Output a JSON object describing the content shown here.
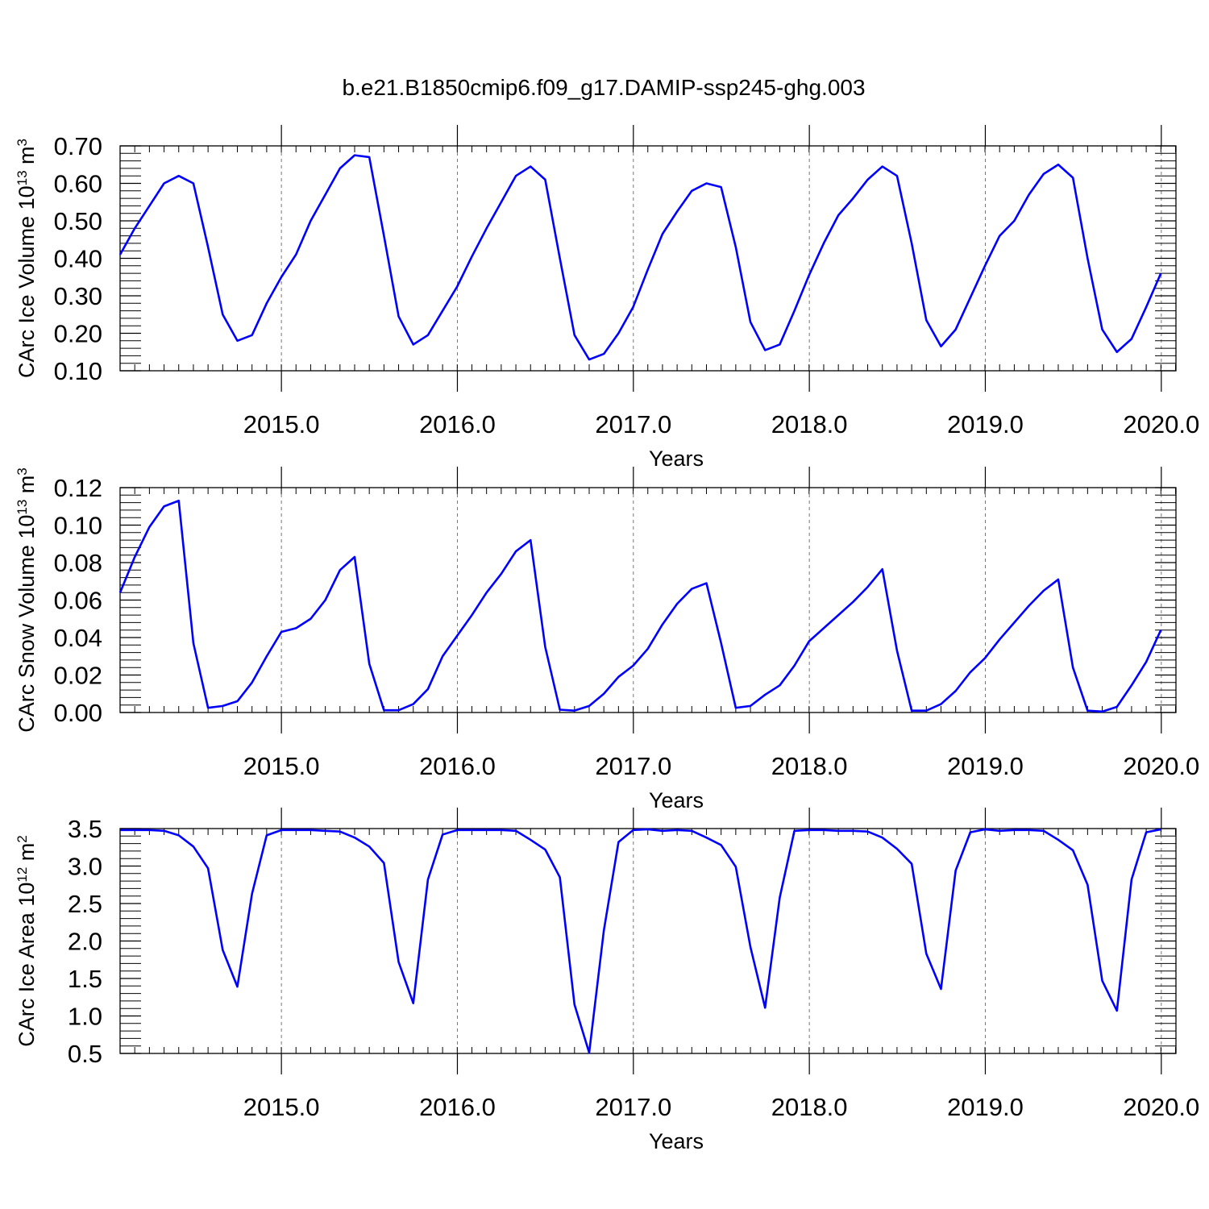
{
  "title": "b.e21.B1850cmip6.f09_g17.DAMIP-ssp245-ghg.003",
  "chart_data": [
    {
      "type": "line",
      "ylabel_main": "CArc Ice Volume 10",
      "ylabel_exp": "13",
      "ylabel_unit": " m",
      "ylabel_unit_exp": "3",
      "xlabel": "Years",
      "xlim": [
        2014.0833,
        2020.0833
      ],
      "ylim": [
        0.1,
        0.7
      ],
      "yticks": [
        0.1,
        0.2,
        0.3,
        0.4,
        0.5,
        0.6,
        0.7
      ],
      "ytick_labels": [
        "0.10",
        "0.20",
        "0.30",
        "0.40",
        "0.50",
        "0.60",
        "0.70"
      ],
      "xticks": [
        2015,
        2016,
        2017,
        2018,
        2019,
        2020
      ],
      "xtick_labels": [
        "2015.0",
        "2016.0",
        "2017.0",
        "2018.0",
        "2019.0",
        "2020.0"
      ],
      "grid": "dashed vertical at years",
      "color": "#0000ff",
      "x_start": 2014.0833,
      "x_step": 0.0833,
      "values": [
        0.41,
        0.48,
        0.54,
        0.6,
        0.62,
        0.6,
        0.43,
        0.25,
        0.18,
        0.195,
        0.28,
        0.35,
        0.41,
        0.5,
        0.57,
        0.64,
        0.675,
        0.67,
        0.46,
        0.245,
        0.17,
        0.195,
        0.26,
        0.325,
        0.405,
        0.48,
        0.55,
        0.62,
        0.645,
        0.61,
        0.4,
        0.195,
        0.13,
        0.145,
        0.2,
        0.27,
        0.37,
        0.465,
        0.525,
        0.58,
        0.6,
        0.59,
        0.43,
        0.23,
        0.155,
        0.17,
        0.26,
        0.355,
        0.44,
        0.515,
        0.56,
        0.61,
        0.645,
        0.62,
        0.44,
        0.235,
        0.165,
        0.21,
        0.295,
        0.38,
        0.46,
        0.5,
        0.57,
        0.625,
        0.65,
        0.615,
        0.4,
        0.21,
        0.15,
        0.185,
        0.27,
        0.36
      ]
    },
    {
      "type": "line",
      "ylabel_main": "CArc Snow Volume 10",
      "ylabel_exp": "13",
      "ylabel_unit": " m",
      "ylabel_unit_exp": "3",
      "xlabel": "Years",
      "xlim": [
        2014.0833,
        2020.0833
      ],
      "ylim": [
        0.0,
        0.12
      ],
      "yticks": [
        0.0,
        0.02,
        0.04,
        0.06,
        0.08,
        0.1,
        0.12
      ],
      "ytick_labels": [
        "0.00",
        "0.02",
        "0.04",
        "0.06",
        "0.08",
        "0.10",
        "0.12"
      ],
      "xticks": [
        2015,
        2016,
        2017,
        2018,
        2019,
        2020
      ],
      "xtick_labels": [
        "2015.0",
        "2016.0",
        "2017.0",
        "2018.0",
        "2019.0",
        "2020.0"
      ],
      "grid": "dashed vertical at years",
      "color": "#0000ff",
      "x_start": 2014.0833,
      "x_step": 0.0833,
      "values": [
        0.064,
        0.083,
        0.099,
        0.11,
        0.113,
        0.037,
        0.0025,
        0.0035,
        0.006,
        0.016,
        0.03,
        0.043,
        0.045,
        0.05,
        0.06,
        0.076,
        0.083,
        0.026,
        0.0012,
        0.0012,
        0.0045,
        0.0125,
        0.03,
        0.041,
        0.052,
        0.064,
        0.074,
        0.086,
        0.092,
        0.035,
        0.0015,
        0.001,
        0.0035,
        0.01,
        0.019,
        0.025,
        0.034,
        0.047,
        0.058,
        0.066,
        0.069,
        0.037,
        0.0025,
        0.0035,
        0.0095,
        0.0145,
        0.025,
        0.038,
        0.045,
        0.052,
        0.059,
        0.067,
        0.0765,
        0.033,
        0.001,
        0.001,
        0.0045,
        0.0115,
        0.0215,
        0.029,
        0.039,
        0.048,
        0.057,
        0.065,
        0.071,
        0.024,
        0.001,
        0.0005,
        0.003,
        0.0145,
        0.027,
        0.044
      ]
    },
    {
      "type": "line",
      "ylabel_main": "CArc Ice Area 10",
      "ylabel_exp": "12",
      "ylabel_unit": " m",
      "ylabel_unit_exp": "2",
      "xlabel": "Years",
      "xlim": [
        2014.0833,
        2020.0833
      ],
      "ylim": [
        0.5,
        3.5
      ],
      "yticks": [
        0.5,
        1.0,
        1.5,
        2.0,
        2.5,
        3.0,
        3.5
      ],
      "ytick_labels": [
        "0.5",
        "1.0",
        "1.5",
        "2.0",
        "2.5",
        "3.0",
        "3.5"
      ],
      "xticks": [
        2015,
        2016,
        2017,
        2018,
        2019,
        2020
      ],
      "xtick_labels": [
        "2015.0",
        "2016.0",
        "2017.0",
        "2018.0",
        "2019.0",
        "2020.0"
      ],
      "grid": "dashed vertical at years",
      "color": "#0000ff",
      "x_start": 2014.0833,
      "x_step": 0.0833,
      "values": [
        3.48,
        3.48,
        3.48,
        3.47,
        3.41,
        3.26,
        2.97,
        1.88,
        1.39,
        2.63,
        3.41,
        3.48,
        3.48,
        3.48,
        3.47,
        3.46,
        3.38,
        3.26,
        3.04,
        1.72,
        1.17,
        2.82,
        3.42,
        3.48,
        3.48,
        3.48,
        3.48,
        3.47,
        3.35,
        3.22,
        2.85,
        1.15,
        0.51,
        2.14,
        3.32,
        3.48,
        3.49,
        3.47,
        3.48,
        3.47,
        3.38,
        3.28,
        2.99,
        1.92,
        1.11,
        2.58,
        3.47,
        3.48,
        3.48,
        3.47,
        3.47,
        3.46,
        3.38,
        3.23,
        3.03,
        1.83,
        1.36,
        2.94,
        3.45,
        3.49,
        3.47,
        3.48,
        3.48,
        3.47,
        3.35,
        3.21,
        2.75,
        1.47,
        1.07,
        2.82,
        3.45,
        3.49
      ]
    }
  ]
}
